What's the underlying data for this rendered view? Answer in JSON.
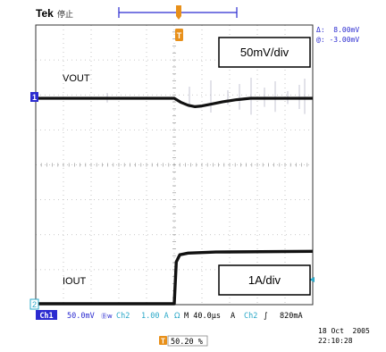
{
  "brand": "Tek",
  "run_state": "停止",
  "cursor_delta": "Δ:  8.00mV",
  "cursor_abs": "@: -3.00mV",
  "upper_box_label": "50mV/div",
  "lower_box_label": "1A/div",
  "vout_label": "VOUT",
  "iout_label": "IOUT",
  "ch1_marker": "1",
  "ch2_marker": "2",
  "trigger_marker": "T",
  "status": {
    "ch1_badge": "Ch1",
    "ch1_scale": "50.0mV",
    "ch1_coupling": "Ⓑw",
    "ch2_badge": "Ch2",
    "ch2_scale": "1.00 A",
    "ch2_coupling": "Ω",
    "timebase": "M 40.0µs",
    "acq": "A",
    "trig_source": "Ch2",
    "trig_slope": "∫",
    "trig_level": "820mA",
    "trig_pos_icon": "T",
    "trig_pos": "50.20 %",
    "date": "18 Oct  2005",
    "time": "22:10:28"
  },
  "colors": {
    "ch1": "#2b2bd0",
    "ch2": "#2aa8c8",
    "trigger": "#e8901a",
    "trace": "#111111",
    "grid": "#b8b8b8"
  },
  "chart_data": {
    "type": "line",
    "title": "",
    "xlabel": "",
    "ylabel": "",
    "time_per_div_us": 40,
    "xlim_us": [
      -200,
      200
    ],
    "x_divisions": 10,
    "y_divisions": 8,
    "grid": true,
    "series": [
      {
        "name": "VOUT",
        "scale": "50mV/div",
        "x_us": [
          -200,
          0,
          10,
          20,
          30,
          40,
          55,
          70,
          90,
          110,
          200
        ],
        "y_mV": [
          0,
          0,
          -6,
          -10,
          -12,
          -11,
          -8,
          -5,
          -2,
          0,
          0
        ]
      },
      {
        "name": "IOUT",
        "scale": "1A/div",
        "x_us": [
          -200,
          0,
          3,
          8,
          20,
          60,
          200
        ],
        "y_A": [
          0,
          0,
          1.2,
          1.4,
          1.45,
          1.48,
          1.5
        ]
      }
    ]
  }
}
